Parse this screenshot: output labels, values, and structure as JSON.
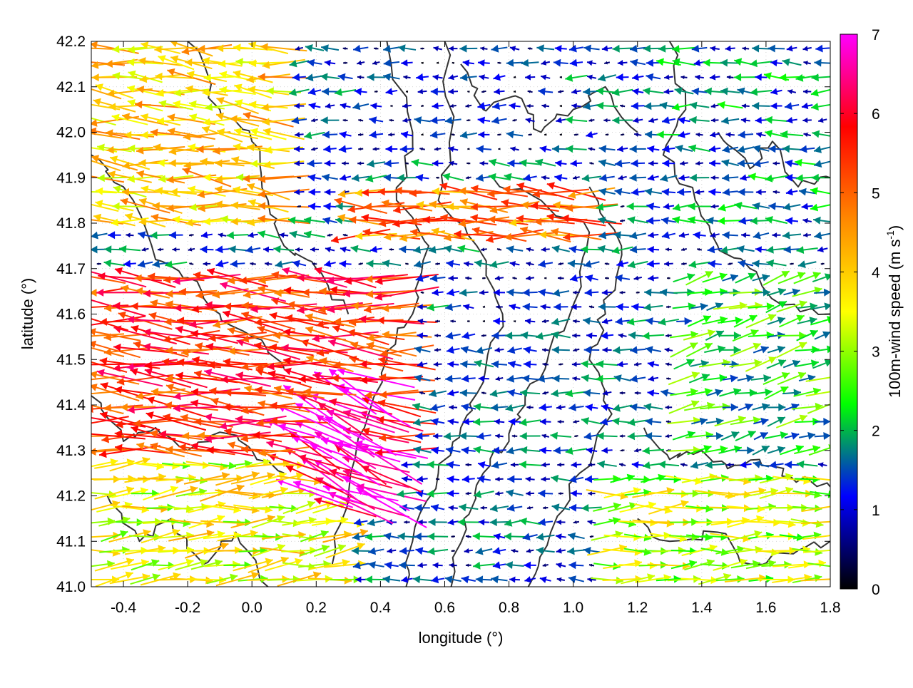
{
  "chart_data": {
    "type": "vector_field",
    "title": "",
    "xlabel": "longitude (°)",
    "ylabel": "latitude (°)",
    "xlim": [
      -0.5,
      1.8
    ],
    "ylim": [
      41.0,
      42.2
    ],
    "xticks": [
      -0.4,
      -0.2,
      0.0,
      0.2,
      0.4,
      0.6,
      0.8,
      1.0,
      1.2,
      1.4,
      1.6,
      1.8
    ],
    "yticks": [
      41.0,
      41.1,
      41.2,
      41.3,
      41.4,
      41.5,
      41.6,
      41.7,
      41.8,
      41.9,
      42.0,
      42.1,
      42.2
    ],
    "grid": true,
    "colorbar": {
      "label_main": "100m-wind speed (m s",
      "label_sup": "-1",
      "label_end": ")",
      "range": [
        0,
        7
      ],
      "ticks": [
        0,
        1,
        2,
        3,
        4,
        5,
        6,
        7
      ],
      "colors": [
        "#000000",
        "#0000ff",
        "#00ff00",
        "#ffff00",
        "#ff8800",
        "#ff0000",
        "#ff00ff"
      ]
    },
    "contour_color": "#333333",
    "wind_regions": [
      {
        "x": [
          -0.5,
          0.5
        ],
        "y": [
          41.3,
          41.7
        ],
        "u": -1.0,
        "v": 0.06,
        "speed": 5.5
      },
      {
        "x": [
          0.1,
          0.45
        ],
        "y": [
          41.15,
          41.5
        ],
        "u": -0.9,
        "v": 0.4,
        "speed": 6.8
      },
      {
        "x": [
          -0.5,
          0.1
        ],
        "y": [
          41.8,
          42.2
        ],
        "u": -1.0,
        "v": 0.1,
        "speed": 4.0
      },
      {
        "x": [
          0.3,
          1.1
        ],
        "y": [
          41.75,
          41.9
        ],
        "u": -1.0,
        "v": 0.05,
        "speed": 4.8
      },
      {
        "x": [
          0.4,
          1.0
        ],
        "y": [
          41.95,
          42.2
        ],
        "u": -0.6,
        "v": 0.0,
        "speed": 0.8
      },
      {
        "x": [
          0.6,
          1.0
        ],
        "y": [
          41.4,
          41.7
        ],
        "u": -1.0,
        "v": 0.0,
        "speed": 1.0
      },
      {
        "x": [
          1.1,
          1.8
        ],
        "y": [
          41.0,
          41.25
        ],
        "u": 1.0,
        "v": 0.05,
        "speed": 3.2
      },
      {
        "x": [
          1.3,
          1.8
        ],
        "y": [
          41.3,
          41.7
        ],
        "u": 0.8,
        "v": 0.2,
        "speed": 2.3
      },
      {
        "x": [
          1.2,
          1.8
        ],
        "y": [
          41.75,
          42.2
        ],
        "u": -1.0,
        "v": 0.0,
        "speed": 1.5
      },
      {
        "x": [
          -0.5,
          0.3
        ],
        "y": [
          41.0,
          41.3
        ],
        "u": 1.0,
        "v": 0.1,
        "speed": 3.5
      }
    ]
  }
}
